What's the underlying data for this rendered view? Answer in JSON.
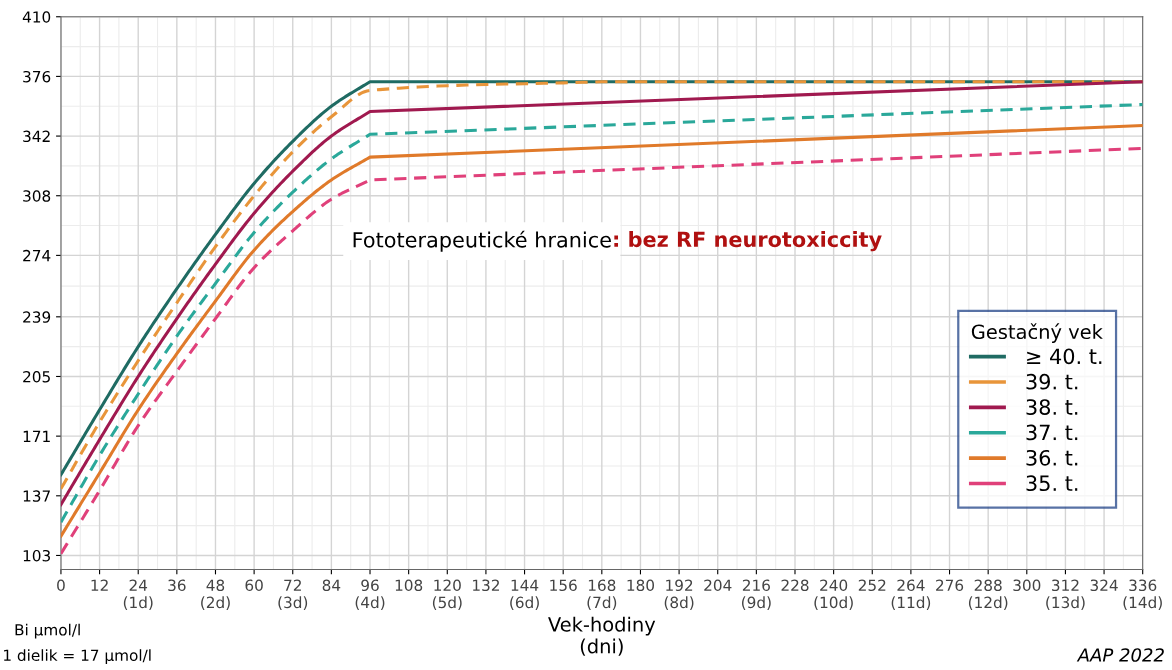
{
  "chart_data": {
    "type": "line",
    "xlabel": "Vek-hodiny\n(dni)",
    "legend_title": "Gestačný vek",
    "legend": "center right",
    "grid": true,
    "marker": "none",
    "xlim": [
      0,
      336
    ],
    "ylim": [
      95,
      410
    ],
    "xticks": [
      0,
      12,
      {
        "value": 24,
        "label": "24\n(1d)"
      },
      36,
      {
        "value": 48,
        "label": "48\n(2d)"
      },
      60,
      {
        "value": 72,
        "label": "72\n(3d)"
      },
      84,
      {
        "value": 96,
        "label": "96\n(4d)"
      },
      108,
      {
        "value": 120,
        "label": "120\n(5d)"
      },
      132,
      {
        "value": 144,
        "label": "144\n(6d)"
      },
      156,
      {
        "value": 168,
        "label": "168\n(7d)"
      },
      180,
      {
        "value": 192,
        "label": "192\n(8d)"
      },
      204,
      {
        "value": 216,
        "label": "216\n(9d)"
      },
      228,
      {
        "value": 240,
        "label": "240\n(10d)"
      },
      252,
      {
        "value": 264,
        "label": "264\n(11d)"
      },
      276,
      {
        "value": 288,
        "label": "288\n(12d)"
      },
      300,
      {
        "value": 312,
        "label": "312\n(13d)"
      },
      324,
      {
        "value": 336,
        "label": "336\n(14d)"
      }
    ],
    "yticks": [
      103,
      137,
      171,
      205,
      239,
      274,
      308,
      342,
      376,
      410
    ],
    "series": [
      {
        "name": "≥ 40. t.",
        "color": "#1f6b63",
        "line_style": "solid",
        "x": [
          0,
          12,
          24,
          36,
          48,
          60,
          72,
          84,
          96,
          336
        ],
        "values": [
          149,
          186,
          222,
          255,
          286,
          315,
          339,
          359,
          373,
          373
        ]
      },
      {
        "name": "39. t.",
        "color": "#e8953a",
        "line_style": "dashed",
        "x": [
          0,
          12,
          24,
          36,
          48,
          60,
          72,
          84,
          96,
          168,
          336
        ],
        "values": [
          141,
          179,
          214,
          247,
          279,
          308,
          333,
          353,
          368,
          373,
          373
        ]
      },
      {
        "name": "38. t.",
        "color": "#a0194f",
        "line_style": "solid",
        "x": [
          0,
          12,
          24,
          36,
          48,
          60,
          72,
          84,
          96,
          336
        ],
        "values": [
          132,
          169,
          205,
          238,
          269,
          298,
          322,
          342,
          356,
          373
        ]
      },
      {
        "name": "37. t.",
        "color": "#2aa89a",
        "line_style": "dashed",
        "x": [
          0,
          12,
          24,
          36,
          48,
          60,
          72,
          84,
          96,
          336
        ],
        "values": [
          122,
          160,
          195,
          228,
          258,
          287,
          310,
          329,
          343,
          360
        ]
      },
      {
        "name": "36. t.",
        "color": "#e07a2a",
        "line_style": "solid",
        "x": [
          0,
          12,
          24,
          36,
          48,
          60,
          72,
          84,
          96,
          336
        ],
        "values": [
          114,
          150,
          186,
          218,
          248,
          277,
          299,
          317,
          330,
          348
        ]
      },
      {
        "name": "35. t.",
        "color": "#e0407a",
        "line_style": "dashed",
        "x": [
          0,
          12,
          24,
          36,
          48,
          60,
          72,
          84,
          96,
          336
        ],
        "values": [
          104,
          140,
          177,
          208,
          238,
          267,
          288,
          306,
          317,
          335
        ]
      }
    ],
    "annotations": [
      "Fototerapeutické hranice",
      ": bez RF neurotoxiccity",
      "Bi µmol/l",
      "1 dielik = 17 µmol/l",
      "AAP 2022"
    ]
  }
}
